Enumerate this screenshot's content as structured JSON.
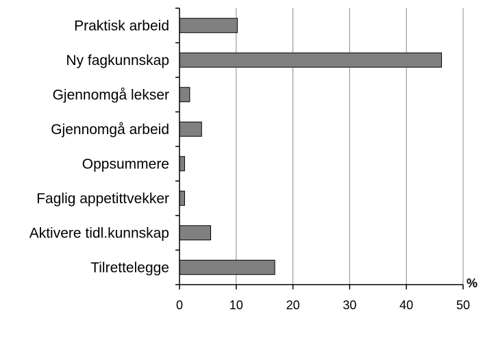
{
  "chart_data": {
    "type": "bar",
    "orientation": "horizontal",
    "categories": [
      "Praktisk arbeid",
      "Ny fagkunnskap",
      "Gjennomgå lekser",
      "Gjennomgå arbeid",
      "Oppsummere",
      "Faglig appetittvekker",
      "Aktivere tidl.kunnskap",
      "Tilrettelegge"
    ],
    "values": [
      10.2,
      46.2,
      1.8,
      3.9,
      0.9,
      0.9,
      5.5,
      16.8
    ],
    "xlim": [
      0,
      50
    ],
    "xticks": [
      0,
      10,
      20,
      30,
      40,
      50
    ],
    "xlabel": "%",
    "grid": true,
    "bar_color": "#808080",
    "bar_edge_color": "#000000"
  }
}
